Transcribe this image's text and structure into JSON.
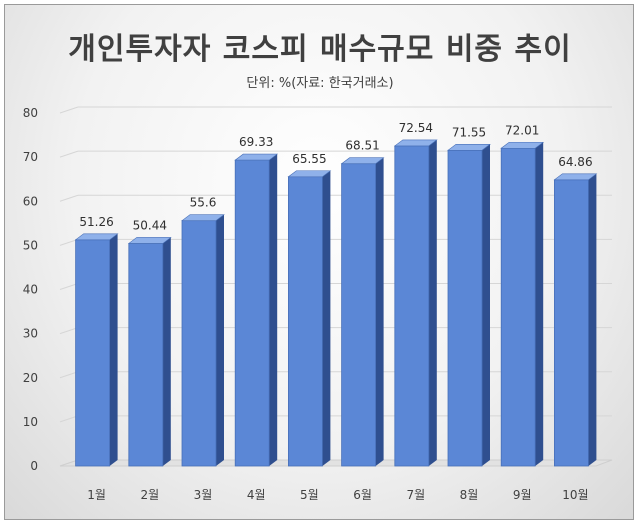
{
  "chart_data": {
    "type": "bar",
    "title": "개인투자자 코스피 매수규모 비중 추이",
    "subtitle": "단위: %(자료: 한국거래소)",
    "categories": [
      "1월",
      "2월",
      "3월",
      "4월",
      "5월",
      "6월",
      "7월",
      "8월",
      "9월",
      "10월"
    ],
    "values": [
      51.26,
      50.44,
      55.6,
      69.33,
      65.55,
      68.51,
      72.54,
      71.55,
      72.01,
      64.86
    ],
    "data_labels": [
      "51.26",
      "50.44",
      "55.6",
      "69.33",
      "65.55",
      "68.51",
      "72.54",
      "71.55",
      "72.01",
      "64.86"
    ],
    "ylim": [
      0,
      80
    ],
    "yticks": [
      "0",
      "10",
      "20",
      "30",
      "40",
      "50",
      "60",
      "70",
      "80"
    ],
    "xlabel": "",
    "ylabel": "",
    "grid": true,
    "style": "3d-bar",
    "colors": {
      "bar_front": "#5b87d6",
      "bar_side": "#2f4f8f",
      "bar_top": "#8fb1ea",
      "grid": "#d6d6d6"
    }
  }
}
